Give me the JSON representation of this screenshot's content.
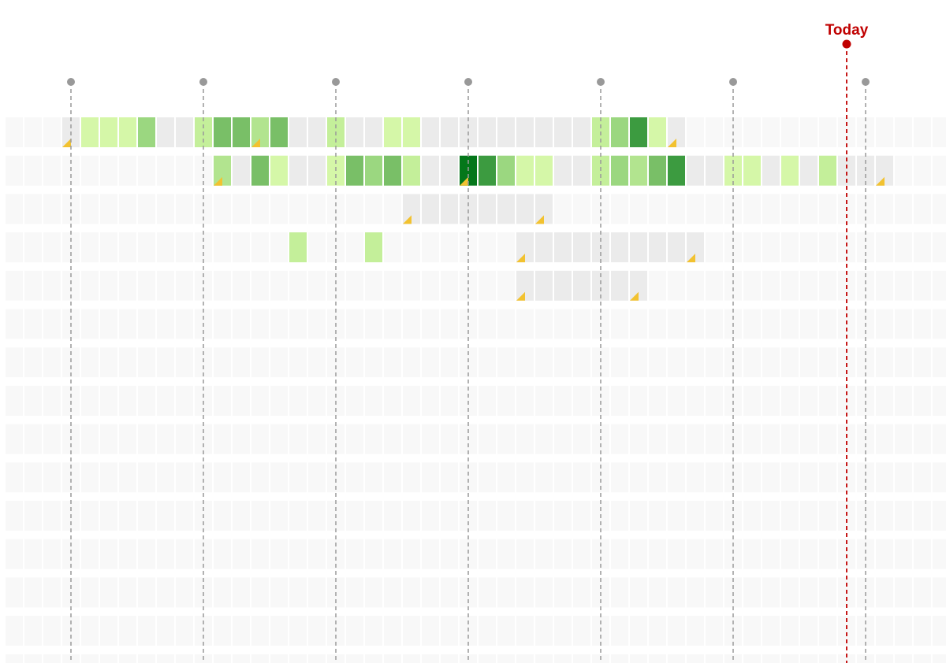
{
  "chart_data": {
    "type": "heatmap",
    "today_label": "Today",
    "columns": 50,
    "rows_shown": 15,
    "colors": {
      "empty": "#f8f8f8",
      "inactive": "#ebebeb",
      "today": "#c00000",
      "marker": "#999999",
      "corner_flag": "#f2c230",
      "levels": [
        "#ebebeb",
        "#d5f7a8",
        "#c4ef9a",
        "#b2e48f",
        "#9bd780",
        "#79bf67",
        "#3c9b40",
        "#04771a"
      ]
    },
    "milestone_columns": [
      3,
      10,
      17,
      24,
      31,
      38,
      45
    ],
    "today_column": 44,
    "rows": [
      {
        "spans": [
          [
            3,
            35
          ]
        ],
        "cells": {
          "4": 1,
          "5": 1,
          "6": 1,
          "7": 4,
          "10": 2,
          "11": 5,
          "12": 5,
          "13": 3,
          "14": 5,
          "17": 2,
          "20": 1,
          "21": 1,
          "31": 2,
          "32": 4,
          "33": 6,
          "34": 1
        },
        "flags": [
          3,
          13,
          35
        ]
      },
      {
        "spans": [
          [
            11,
            46
          ]
        ],
        "cells": {
          "11": 3,
          "13": 5,
          "14": 1,
          "17": 1,
          "18": 5,
          "19": 4,
          "20": 5,
          "21": 2,
          "24": 7,
          "25": 6,
          "26": 4,
          "27": 1,
          "28": 1,
          "31": 2,
          "32": 4,
          "33": 3,
          "34": 5,
          "35": 6,
          "38": 1,
          "39": 1,
          "41": 1,
          "43": 2
        },
        "flags": [
          11,
          24,
          46
        ]
      },
      {
        "spans": [
          [
            21,
            28
          ]
        ],
        "cells": {},
        "flags": [
          21,
          28
        ]
      },
      {
        "spans": [
          [
            27,
            36
          ]
        ],
        "cells": {
          "15": 2,
          "19": 2
        },
        "flags": [
          27,
          36
        ]
      },
      {
        "spans": [
          [
            27,
            33
          ]
        ],
        "cells": {},
        "flags": [
          27,
          33
        ]
      }
    ]
  }
}
